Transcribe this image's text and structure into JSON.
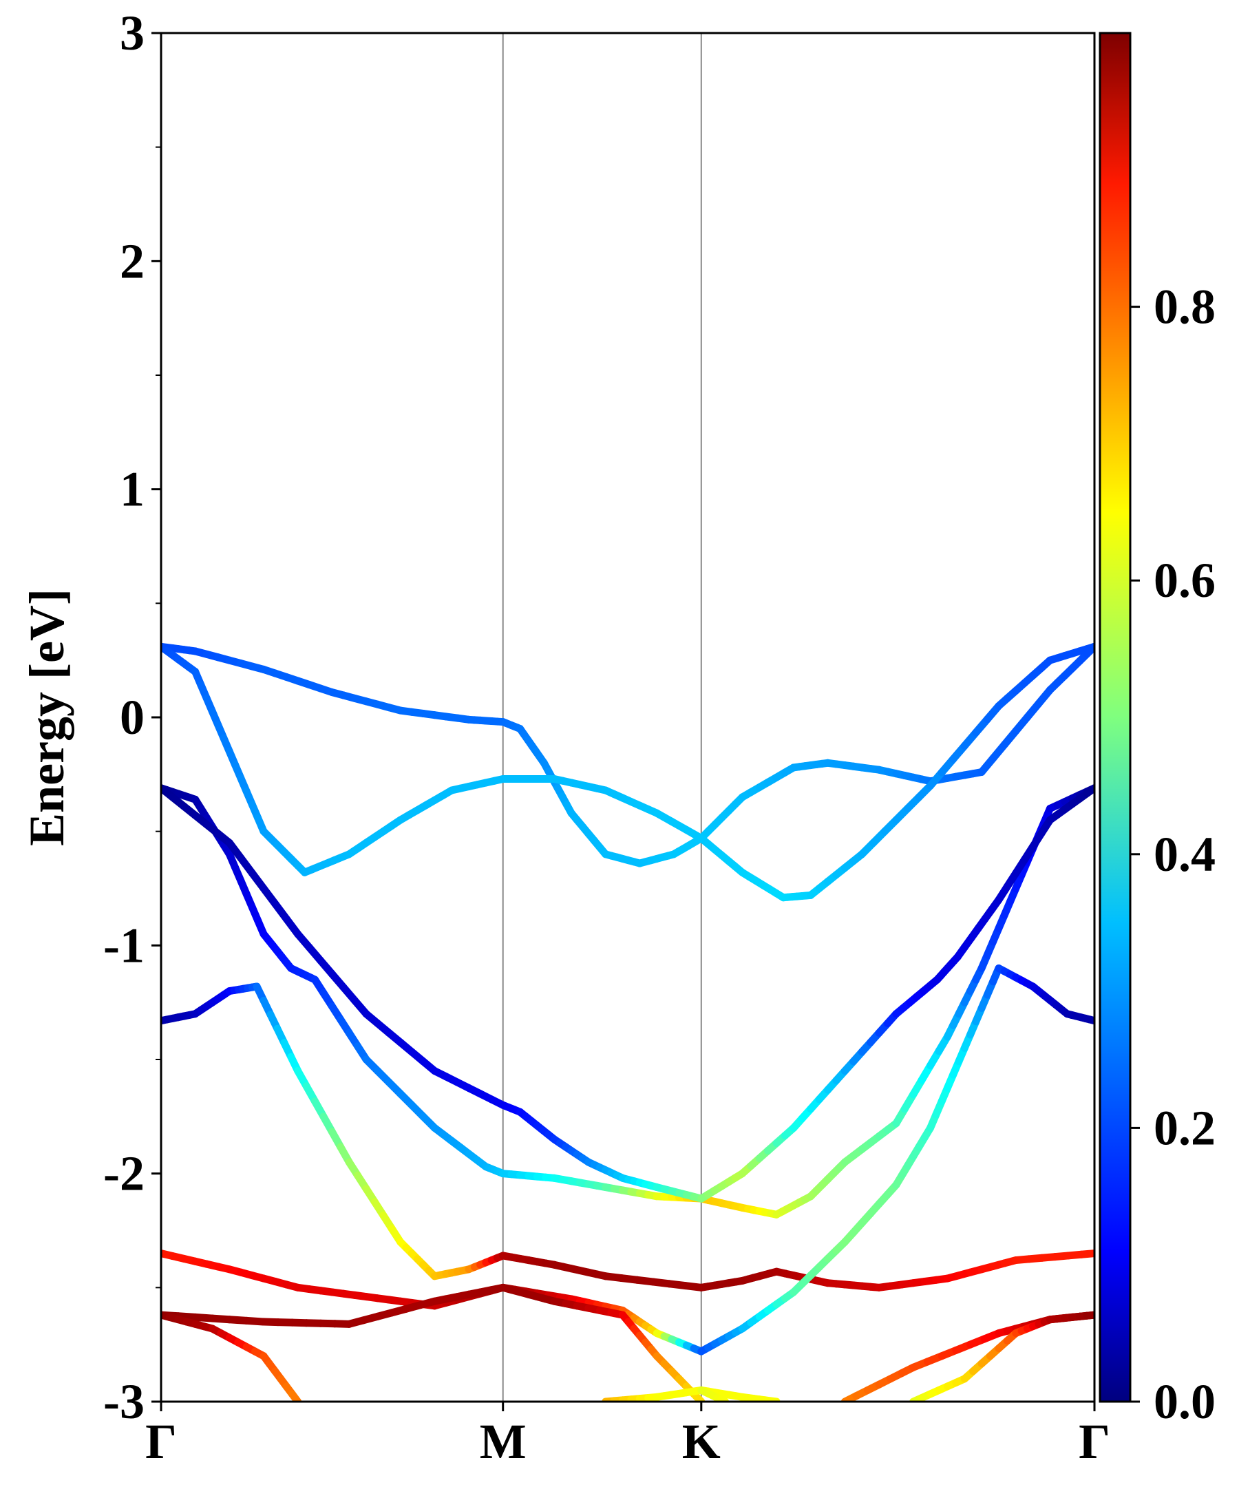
{
  "chart_data": {
    "type": "line",
    "title": "",
    "xlabel": "",
    "ylabel": "Energy [eV]",
    "ylim": [
      -3,
      3
    ],
    "y_ticks": [
      "-3",
      "-2",
      "-1",
      "0",
      "1",
      "2",
      "3"
    ],
    "k_path": [
      "Γ",
      "M",
      "K",
      "Γ"
    ],
    "k_ticks": [
      0,
      1,
      1.58,
      2.73
    ],
    "colorbar": {
      "colormap": "jet",
      "range": [
        0,
        1
      ],
      "ticks": [
        "0.0",
        "0.2",
        "0.4",
        "0.6",
        "0.8"
      ]
    },
    "series": [
      {
        "points": [
          [
            0,
            0.31,
            0.2
          ],
          [
            0.1,
            0.29,
            0.2
          ],
          [
            0.3,
            0.21,
            0.22
          ],
          [
            0.5,
            0.11,
            0.22
          ],
          [
            0.7,
            0.03,
            0.23
          ],
          [
            0.9,
            -0.01,
            0.23
          ],
          [
            1,
            -0.02,
            0.23
          ],
          [
            1.05,
            -0.05,
            0.24
          ],
          [
            1.12,
            -0.2,
            0.26
          ],
          [
            1.2,
            -0.42,
            0.3
          ],
          [
            1.3,
            -0.6,
            0.31
          ],
          [
            1.4,
            -0.64,
            0.31
          ],
          [
            1.5,
            -0.6,
            0.32
          ],
          [
            1.58,
            -0.53,
            0.32
          ],
          [
            1.7,
            -0.35,
            0.31
          ],
          [
            1.85,
            -0.22,
            0.29
          ],
          [
            1.95,
            -0.2,
            0.28
          ],
          [
            2.1,
            -0.23,
            0.27
          ],
          [
            2.25,
            -0.28,
            0.24
          ],
          [
            2.4,
            -0.24,
            0.22
          ],
          [
            2.6,
            0.12,
            0.21
          ],
          [
            2.73,
            0.31,
            0.2
          ]
        ]
      },
      {
        "points": [
          [
            0,
            0.31,
            0.2
          ],
          [
            0.1,
            0.2,
            0.22
          ],
          [
            0.2,
            -0.15,
            0.25
          ],
          [
            0.3,
            -0.5,
            0.28
          ],
          [
            0.42,
            -0.68,
            0.3
          ],
          [
            0.55,
            -0.6,
            0.31
          ],
          [
            0.7,
            -0.45,
            0.31
          ],
          [
            0.85,
            -0.32,
            0.31
          ],
          [
            1,
            -0.27,
            0.31
          ],
          [
            1.15,
            -0.27,
            0.31
          ],
          [
            1.3,
            -0.32,
            0.31
          ],
          [
            1.45,
            -0.42,
            0.32
          ],
          [
            1.58,
            -0.53,
            0.32
          ],
          [
            1.7,
            -0.68,
            0.33
          ],
          [
            1.82,
            -0.79,
            0.34
          ],
          [
            1.9,
            -0.78,
            0.33
          ],
          [
            2.05,
            -0.6,
            0.3
          ],
          [
            2.25,
            -0.3,
            0.27
          ],
          [
            2.45,
            0.05,
            0.22
          ],
          [
            2.6,
            0.25,
            0.2
          ],
          [
            2.73,
            0.31,
            0.2
          ]
        ]
      },
      {
        "points": [
          [
            0,
            -0.31,
            0.02
          ],
          [
            0.1,
            -0.36,
            0.04
          ],
          [
            0.2,
            -0.6,
            0.08
          ],
          [
            0.3,
            -0.95,
            0.12
          ],
          [
            0.38,
            -1.1,
            0.15
          ],
          [
            0.45,
            -1.15,
            0.17
          ],
          [
            0.6,
            -1.5,
            0.24
          ],
          [
            0.8,
            -1.8,
            0.27
          ],
          [
            0.95,
            -1.97,
            0.3
          ],
          [
            1,
            -2,
            0.32
          ],
          [
            1.15,
            -2.02,
            0.38
          ],
          [
            1.3,
            -2.06,
            0.45
          ],
          [
            1.45,
            -2.1,
            0.6
          ],
          [
            1.58,
            -2.11,
            0.68
          ],
          [
            1.7,
            -2.15,
            0.66
          ],
          [
            1.8,
            -2.18,
            0.6
          ],
          [
            1.9,
            -2.1,
            0.54
          ],
          [
            2,
            -1.95,
            0.5
          ],
          [
            2.15,
            -1.78,
            0.45
          ],
          [
            2.3,
            -1.4,
            0.32
          ],
          [
            2.4,
            -1.1,
            0.2
          ],
          [
            2.5,
            -0.75,
            0.15
          ],
          [
            2.6,
            -0.4,
            0.1
          ],
          [
            2.73,
            -0.31,
            0.02
          ]
        ]
      },
      {
        "points": [
          [
            0,
            -0.31,
            0.02
          ],
          [
            0.2,
            -0.55,
            0.04
          ],
          [
            0.4,
            -0.95,
            0.07
          ],
          [
            0.6,
            -1.3,
            0.08
          ],
          [
            0.8,
            -1.55,
            0.1
          ],
          [
            1,
            -1.7,
            0.11
          ],
          [
            1.05,
            -1.73,
            0.13
          ],
          [
            1.15,
            -1.85,
            0.17
          ],
          [
            1.25,
            -1.95,
            0.25
          ],
          [
            1.35,
            -2.02,
            0.32
          ],
          [
            1.45,
            -2.06,
            0.4
          ],
          [
            1.58,
            -2.11,
            0.5
          ],
          [
            1.7,
            -2.0,
            0.56
          ],
          [
            1.85,
            -1.8,
            0.4
          ],
          [
            2,
            -1.55,
            0.3
          ],
          [
            2.15,
            -1.3,
            0.15
          ],
          [
            2.27,
            -1.15,
            0.1
          ],
          [
            2.33,
            -1.05,
            0.1
          ],
          [
            2.45,
            -0.8,
            0.08
          ],
          [
            2.6,
            -0.45,
            0.05
          ],
          [
            2.73,
            -0.31,
            0.02
          ]
        ]
      },
      {
        "points": [
          [
            0,
            -1.33,
            0.04
          ],
          [
            0.1,
            -1.3,
            0.06
          ],
          [
            0.2,
            -1.2,
            0.12
          ],
          [
            0.28,
            -1.18,
            0.22
          ],
          [
            0.4,
            -1.55,
            0.38
          ],
          [
            0.55,
            -1.95,
            0.52
          ],
          [
            0.7,
            -2.3,
            0.62
          ],
          [
            0.8,
            -2.45,
            0.68
          ],
          [
            0.9,
            -2.42,
            0.72
          ],
          [
            1,
            -2.36,
            0.95
          ],
          [
            1.15,
            -2.4,
            0.97
          ],
          [
            1.3,
            -2.45,
            0.97
          ],
          [
            1.58,
            -2.5,
            0.97
          ],
          [
            1.7,
            -2.47,
            0.97
          ],
          [
            1.8,
            -2.43,
            0.96
          ],
          [
            1.95,
            -2.48,
            0.93
          ],
          [
            2.1,
            -2.5,
            0.92
          ],
          [
            2.3,
            -2.46,
            0.88
          ],
          [
            2.5,
            -2.38,
            0.85
          ],
          [
            2.73,
            -2.35,
            0.85
          ]
        ]
      },
      {
        "points": [
          [
            0,
            -2.35,
            0.85
          ],
          [
            0.2,
            -2.42,
            0.87
          ],
          [
            0.4,
            -2.5,
            0.9
          ],
          [
            0.6,
            -2.54,
            0.9
          ],
          [
            0.8,
            -2.58,
            0.92
          ],
          [
            1,
            -2.5,
            0.97
          ],
          [
            1.2,
            -2.55,
            0.9
          ],
          [
            1.35,
            -2.6,
            0.8
          ],
          [
            1.45,
            -2.7,
            0.65
          ],
          [
            1.58,
            -2.78,
            0.2
          ],
          [
            1.7,
            -2.68,
            0.3
          ],
          [
            1.85,
            -2.52,
            0.45
          ],
          [
            2,
            -2.3,
            0.5
          ],
          [
            2.15,
            -2.05,
            0.48
          ],
          [
            2.25,
            -1.8,
            0.42
          ],
          [
            2.35,
            -1.45,
            0.35
          ],
          [
            2.45,
            -1.1,
            0.2
          ],
          [
            2.55,
            -1.18,
            0.1
          ],
          [
            2.65,
            -1.3,
            0.05
          ],
          [
            2.73,
            -1.33,
            0.04
          ]
        ]
      },
      {
        "points": [
          [
            0,
            -2.62,
            0.98
          ],
          [
            0.3,
            -2.65,
            0.97
          ],
          [
            0.55,
            -2.66,
            0.97
          ],
          [
            0.8,
            -2.56,
            0.96
          ],
          [
            1,
            -2.5,
            0.97
          ],
          [
            1.15,
            -2.56,
            0.97
          ],
          [
            1.35,
            -2.62,
            0.9
          ],
          [
            1.45,
            -2.8,
            0.75
          ],
          [
            1.58,
            -3.0,
            0.65
          ]
        ]
      },
      {
        "points": [
          [
            0,
            -2.62,
            0.98
          ],
          [
            0.15,
            -2.68,
            0.95
          ],
          [
            0.3,
            -2.8,
            0.8
          ],
          [
            0.4,
            -3.0,
            0.75
          ]
        ]
      },
      {
        "points": [
          [
            1.3,
            -3.0,
            0.7
          ],
          [
            1.45,
            -2.98,
            0.62
          ],
          [
            1.58,
            -2.95,
            0.62
          ],
          [
            1.7,
            -2.98,
            0.62
          ],
          [
            1.8,
            -3.0,
            0.62
          ]
        ]
      },
      {
        "points": [
          [
            1.58,
            -2.95,
            0.6
          ],
          [
            1.65,
            -3.0,
            0.62
          ]
        ]
      },
      {
        "points": [
          [
            2.0,
            -3.0,
            0.75
          ],
          [
            2.2,
            -2.85,
            0.8
          ],
          [
            2.45,
            -2.7,
            0.88
          ],
          [
            2.6,
            -2.64,
            0.95
          ],
          [
            2.73,
            -2.62,
            0.98
          ]
        ]
      },
      {
        "points": [
          [
            2.2,
            -3.0,
            0.6
          ],
          [
            2.35,
            -2.9,
            0.65
          ],
          [
            2.5,
            -2.7,
            0.8
          ],
          [
            2.6,
            -2.64,
            0.95
          ],
          [
            2.73,
            -2.62,
            0.98
          ]
        ]
      }
    ]
  }
}
